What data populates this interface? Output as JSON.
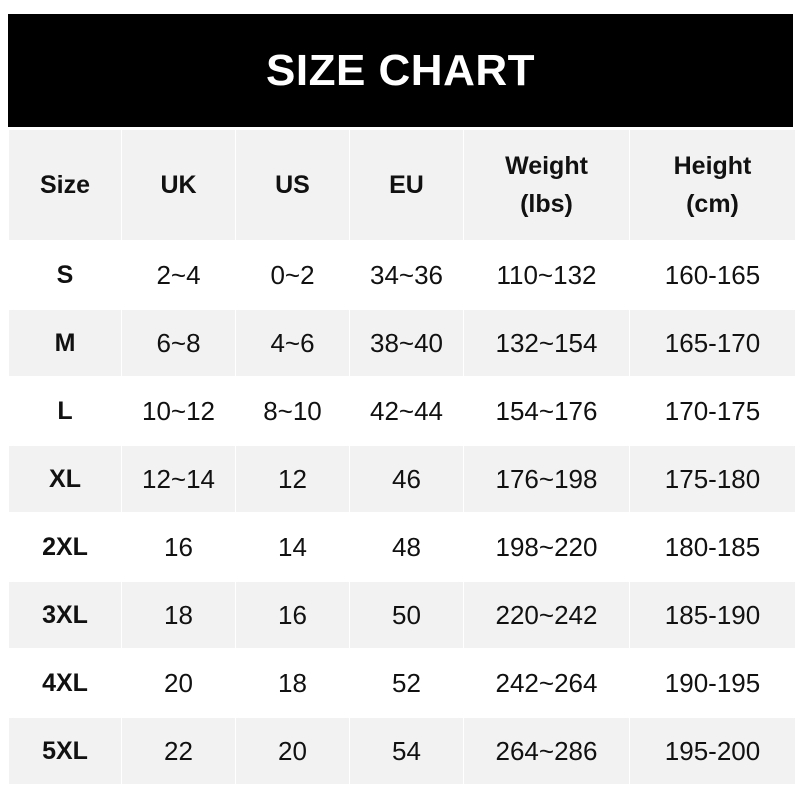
{
  "title": "SIZE CHART",
  "headers": [
    "Size",
    "UK",
    "US",
    "EU",
    "Weight (lbs)",
    "Height (cm)"
  ],
  "header_lines": [
    [
      "Size"
    ],
    [
      "UK"
    ],
    [
      "US"
    ],
    [
      "EU"
    ],
    [
      "Weight",
      "(lbs)"
    ],
    [
      "Height",
      "(cm)"
    ]
  ],
  "rows": [
    [
      "S",
      "2~4",
      "0~2",
      "34~36",
      "110~132",
      "160-165"
    ],
    [
      "M",
      "6~8",
      "4~6",
      "38~40",
      "132~154",
      "165-170"
    ],
    [
      "L",
      "10~12",
      "8~10",
      "42~44",
      "154~176",
      "170-175"
    ],
    [
      "XL",
      "12~14",
      "12",
      "46",
      "176~198",
      "175-180"
    ],
    [
      "2XL",
      "16",
      "14",
      "48",
      "198~220",
      "180-185"
    ],
    [
      "3XL",
      "18",
      "16",
      "50",
      "220~242",
      "185-190"
    ],
    [
      "4XL",
      "20",
      "18",
      "52",
      "242~264",
      "190-195"
    ],
    [
      "5XL",
      "22",
      "20",
      "54",
      "264~286",
      "195-200"
    ]
  ],
  "colors": {
    "title_bg": "#000000",
    "title_text": "#ffffff",
    "stripe": "#f2f2f2"
  }
}
